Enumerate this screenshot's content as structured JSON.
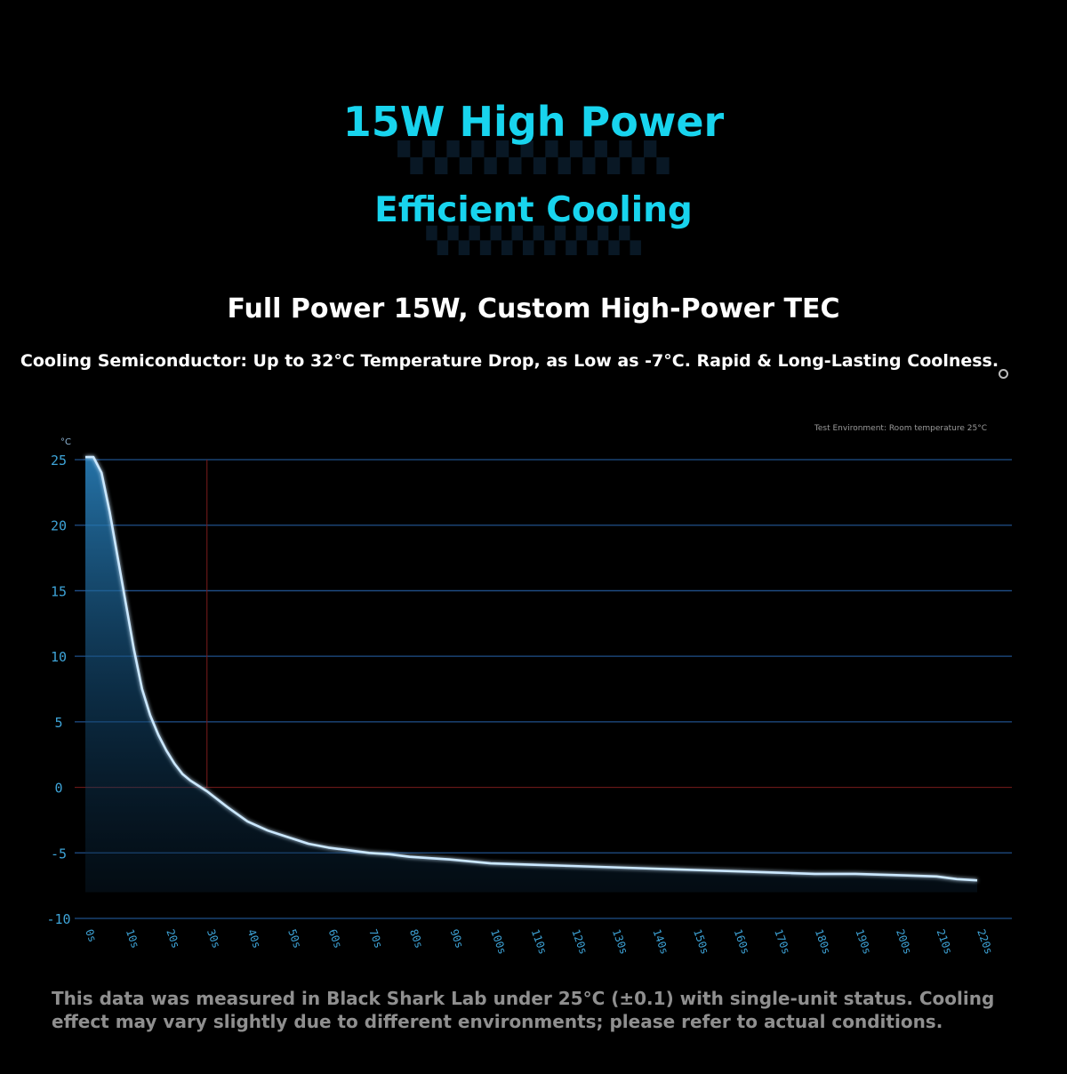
{
  "headline": {
    "line1": "15W High Power",
    "line2": "Efficient Cooling"
  },
  "subheadline": "Full Power 15W, Custom High-Power TEC",
  "tagline": "Cooling Semiconductor: Up to 32°C Temperature Drop, as Low as -7°C. Rapid & Long-Lasting Coolness.",
  "chart_data": {
    "type": "area",
    "ylabel": "°C",
    "annotation": "Test Environment: Room temperature 25°C",
    "ylim": [
      -10,
      25
    ],
    "yticks": [
      25,
      20,
      15,
      10,
      5,
      0,
      -5,
      -10
    ],
    "xticks": [
      "0s",
      "10s",
      "20s",
      "30s",
      "40s",
      "50s",
      "60s",
      "70s",
      "80s",
      "90s",
      "100s",
      "110s",
      "120s",
      "130s",
      "140s",
      "150s",
      "160s",
      "170s",
      "180s",
      "190s",
      "200s",
      "210s",
      "220s"
    ],
    "xlim": [
      0,
      230
    ],
    "grid": true,
    "marker_x": 30,
    "series": [
      {
        "x": [
          0,
          2,
          4,
          6,
          8,
          10,
          12,
          14,
          16,
          18,
          20,
          22,
          24,
          26,
          28,
          30,
          35,
          40,
          45,
          50,
          55,
          60,
          65,
          70,
          75,
          80,
          90,
          100,
          110,
          120,
          130,
          140,
          150,
          160,
          170,
          180,
          190,
          200,
          210,
          215,
          220
        ],
        "y": [
          25.2,
          25.2,
          24,
          21,
          17.5,
          14,
          10.5,
          7.5,
          5.5,
          4,
          2.8,
          1.8,
          1,
          0.5,
          0.1,
          -0.3,
          -1.5,
          -2.6,
          -3.3,
          -3.8,
          -4.3,
          -4.6,
          -4.8,
          -5,
          -5.1,
          -5.3,
          -5.5,
          -5.8,
          -5.9,
          -6,
          -6.1,
          -6.2,
          -6.3,
          -6.4,
          -6.5,
          -6.6,
          -6.6,
          -6.7,
          -6.8,
          -7,
          -7.1
        ]
      }
    ]
  },
  "disclaimer": "This data was measured in Black Shark Lab under 25°C (±0.1) with single-unit status. Cooling effect may vary slightly due to different environments; please refer to actual conditions.",
  "colors": {
    "accent": "#18d4ee",
    "grid": "#1f4f8a",
    "marker": "#7a1c1c",
    "curve": "#cbe8ff",
    "tick": "#3ea4d8"
  }
}
